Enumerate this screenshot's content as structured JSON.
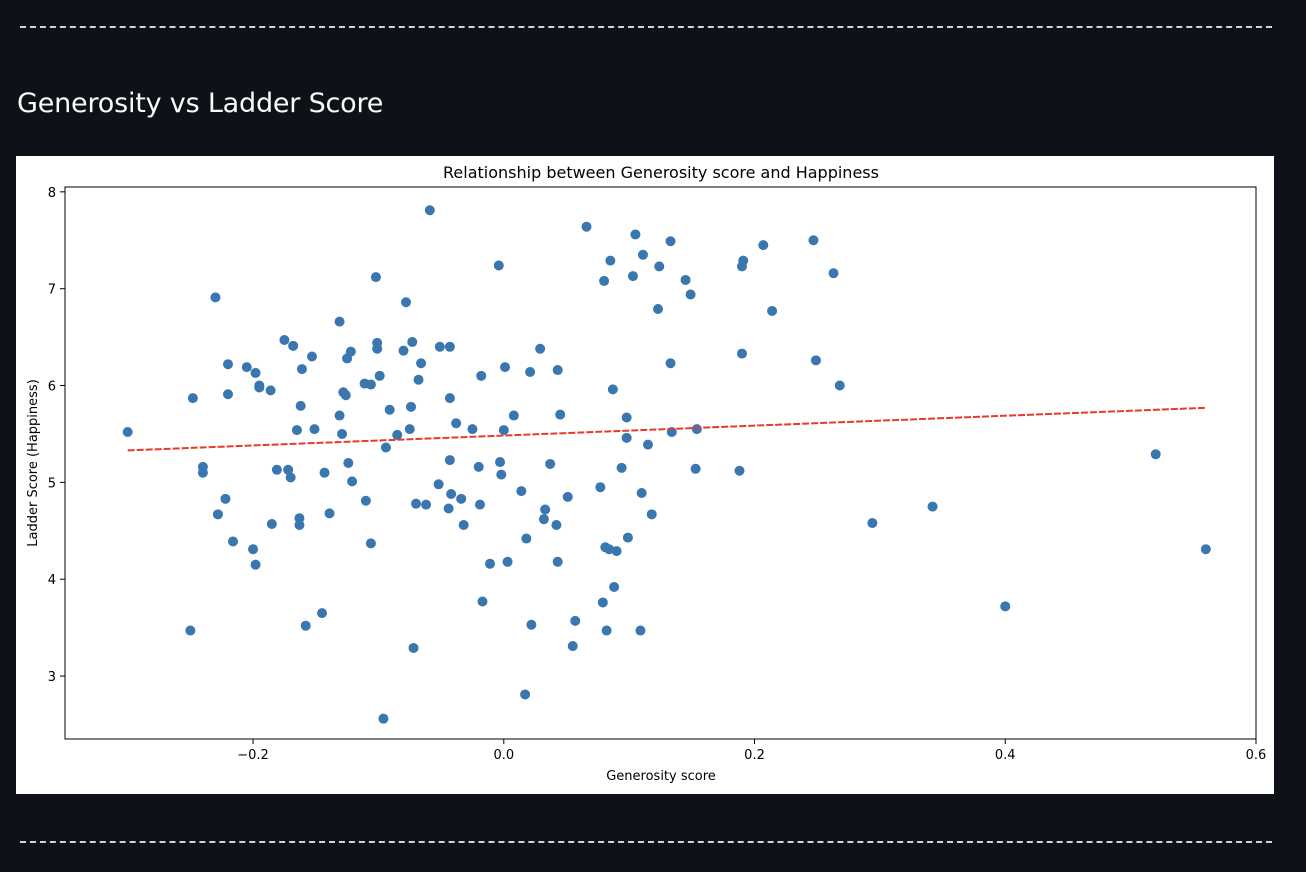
{
  "section": {
    "title": "Generosity vs Ladder Score"
  },
  "colors": {
    "background": "#0e1117",
    "points": "#3a76b0",
    "trend": "#e53b2c"
  },
  "chart_data": {
    "type": "scatter",
    "title": "Relationship between Generosity score and Happiness",
    "xlabel": "Generosity score",
    "ylabel": "Ladder Score (Happiness)",
    "xlim": [
      -0.35,
      0.6
    ],
    "ylim": [
      2.35,
      8.05
    ],
    "xticks": [
      -0.2,
      0.0,
      0.2,
      0.4,
      0.6
    ],
    "xtick_labels": [
      "−0.2",
      "0.0",
      "0.2",
      "0.4",
      "0.6"
    ],
    "yticks": [
      3,
      4,
      5,
      6,
      7,
      8
    ],
    "ytick_labels": [
      "3",
      "4",
      "5",
      "6",
      "7",
      "8"
    ],
    "grid": false,
    "trendline": {
      "x": [
        -0.3,
        0.56
      ],
      "y": [
        5.33,
        5.77
      ],
      "style": "dashed"
    },
    "points": [
      [
        -0.3,
        5.52
      ],
      [
        -0.25,
        3.47
      ],
      [
        -0.248,
        5.87
      ],
      [
        -0.24,
        5.16
      ],
      [
        -0.24,
        5.1
      ],
      [
        -0.23,
        6.91
      ],
      [
        -0.228,
        4.67
      ],
      [
        -0.222,
        4.83
      ],
      [
        -0.22,
        6.22
      ],
      [
        -0.22,
        5.91
      ],
      [
        -0.216,
        4.39
      ],
      [
        -0.205,
        6.19
      ],
      [
        -0.2,
        4.31
      ],
      [
        -0.198,
        6.13
      ],
      [
        -0.198,
        4.15
      ],
      [
        -0.195,
        6.0
      ],
      [
        -0.195,
        5.98
      ],
      [
        -0.186,
        5.95
      ],
      [
        -0.185,
        4.57
      ],
      [
        -0.181,
        5.13
      ],
      [
        -0.175,
        6.47
      ],
      [
        -0.172,
        5.13
      ],
      [
        -0.17,
        5.05
      ],
      [
        -0.168,
        6.41
      ],
      [
        -0.165,
        5.54
      ],
      [
        -0.163,
        4.63
      ],
      [
        -0.163,
        4.56
      ],
      [
        -0.162,
        5.79
      ],
      [
        -0.161,
        6.17
      ],
      [
        -0.158,
        3.52
      ],
      [
        -0.153,
        6.3
      ],
      [
        -0.151,
        5.55
      ],
      [
        -0.145,
        3.65
      ],
      [
        -0.143,
        5.1
      ],
      [
        -0.139,
        4.68
      ],
      [
        -0.131,
        6.66
      ],
      [
        -0.131,
        5.69
      ],
      [
        -0.129,
        5.5
      ],
      [
        -0.128,
        5.93
      ],
      [
        -0.126,
        5.9
      ],
      [
        -0.125,
        6.28
      ],
      [
        -0.124,
        5.2
      ],
      [
        -0.122,
        6.35
      ],
      [
        -0.121,
        5.01
      ],
      [
        -0.111,
        6.02
      ],
      [
        -0.11,
        4.81
      ],
      [
        -0.106,
        6.01
      ],
      [
        -0.106,
        4.37
      ],
      [
        -0.102,
        7.12
      ],
      [
        -0.101,
        6.38
      ],
      [
        -0.101,
        6.44
      ],
      [
        -0.099,
        6.1
      ],
      [
        -0.096,
        2.56
      ],
      [
        -0.094,
        5.36
      ],
      [
        -0.091,
        5.75
      ],
      [
        -0.085,
        5.49
      ],
      [
        -0.08,
        6.36
      ],
      [
        -0.078,
        6.86
      ],
      [
        -0.075,
        5.55
      ],
      [
        -0.074,
        5.78
      ],
      [
        -0.073,
        6.45
      ],
      [
        -0.072,
        3.29
      ],
      [
        -0.07,
        4.78
      ],
      [
        -0.068,
        6.06
      ],
      [
        -0.066,
        6.23
      ],
      [
        -0.062,
        4.77
      ],
      [
        -0.059,
        7.81
      ],
      [
        -0.052,
        4.98
      ],
      [
        -0.051,
        6.4
      ],
      [
        -0.044,
        4.73
      ],
      [
        -0.043,
        6.4
      ],
      [
        -0.043,
        5.87
      ],
      [
        -0.043,
        5.23
      ],
      [
        -0.042,
        4.88
      ],
      [
        -0.038,
        5.61
      ],
      [
        -0.034,
        4.83
      ],
      [
        -0.032,
        4.56
      ],
      [
        -0.025,
        5.55
      ],
      [
        -0.02,
        5.16
      ],
      [
        -0.019,
        4.77
      ],
      [
        -0.018,
        6.1
      ],
      [
        -0.017,
        3.77
      ],
      [
        -0.011,
        4.16
      ],
      [
        -0.004,
        7.24
      ],
      [
        -0.003,
        5.21
      ],
      [
        -0.002,
        5.08
      ],
      [
        0.0,
        5.54
      ],
      [
        0.001,
        6.19
      ],
      [
        0.003,
        4.18
      ],
      [
        0.008,
        5.69
      ],
      [
        0.014,
        4.91
      ],
      [
        0.017,
        2.81
      ],
      [
        0.018,
        4.42
      ],
      [
        0.021,
        6.14
      ],
      [
        0.022,
        3.53
      ],
      [
        0.029,
        6.38
      ],
      [
        0.032,
        4.62
      ],
      [
        0.033,
        4.72
      ],
      [
        0.037,
        5.19
      ],
      [
        0.042,
        4.56
      ],
      [
        0.043,
        6.16
      ],
      [
        0.043,
        4.18
      ],
      [
        0.045,
        5.7
      ],
      [
        0.051,
        4.85
      ],
      [
        0.055,
        3.31
      ],
      [
        0.057,
        3.57
      ],
      [
        0.066,
        7.64
      ],
      [
        0.077,
        4.95
      ],
      [
        0.079,
        3.76
      ],
      [
        0.08,
        7.08
      ],
      [
        0.081,
        4.33
      ],
      [
        0.082,
        3.47
      ],
      [
        0.084,
        4.31
      ],
      [
        0.085,
        7.29
      ],
      [
        0.087,
        5.96
      ],
      [
        0.088,
        3.92
      ],
      [
        0.09,
        4.29
      ],
      [
        0.094,
        5.15
      ],
      [
        0.098,
        5.67
      ],
      [
        0.098,
        5.46
      ],
      [
        0.099,
        4.43
      ],
      [
        0.103,
        7.13
      ],
      [
        0.105,
        7.56
      ],
      [
        0.109,
        3.47
      ],
      [
        0.11,
        4.89
      ],
      [
        0.111,
        7.35
      ],
      [
        0.115,
        5.39
      ],
      [
        0.118,
        4.67
      ],
      [
        0.123,
        6.79
      ],
      [
        0.124,
        7.23
      ],
      [
        0.133,
        6.23
      ],
      [
        0.133,
        7.49
      ],
      [
        0.134,
        5.52
      ],
      [
        0.145,
        7.09
      ],
      [
        0.149,
        6.94
      ],
      [
        0.153,
        5.14
      ],
      [
        0.154,
        5.55
      ],
      [
        0.188,
        5.12
      ],
      [
        0.19,
        7.23
      ],
      [
        0.19,
        6.33
      ],
      [
        0.191,
        7.29
      ],
      [
        0.207,
        7.45
      ],
      [
        0.214,
        6.77
      ],
      [
        0.247,
        7.5
      ],
      [
        0.249,
        6.26
      ],
      [
        0.263,
        7.16
      ],
      [
        0.268,
        6.0
      ],
      [
        0.294,
        4.58
      ],
      [
        0.342,
        4.75
      ],
      [
        0.4,
        3.72
      ],
      [
        0.52,
        5.29
      ],
      [
        0.56,
        4.31
      ]
    ]
  }
}
